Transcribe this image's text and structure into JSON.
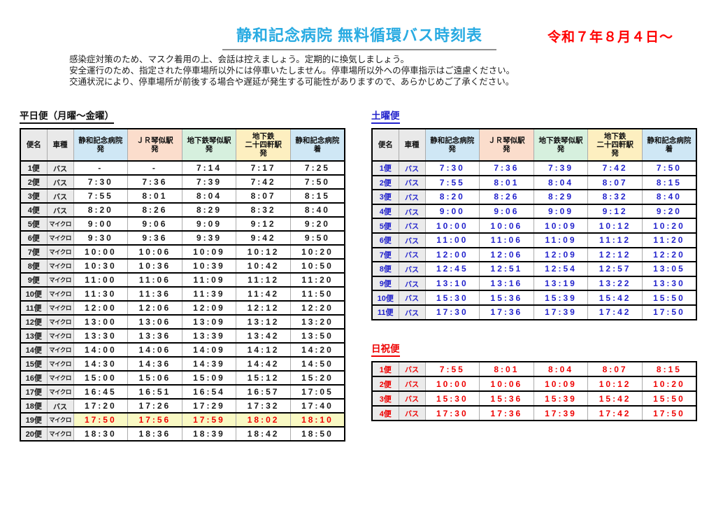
{
  "page": {
    "title": "静和記念病院 無料循環バス時刻表",
    "effective_date": "令和７年８月４日～"
  },
  "notes": [
    "感染症対策のため、マスク着用の上、会話は控えましょう。定期的に換気しましょう。",
    "安全運行のため、指定された停車場所以外には停車いたしません。停車場所以外への停車指示はご遠慮ください。",
    "交通状況により、停車場所が前後する場合や遅延が発生する可能性がありますので、あらかじめご了承ください。"
  ],
  "colors": {
    "title_blue": "#29abe2",
    "date_red": "#ff0000",
    "saturday_text": "#2222cc",
    "holiday_text": "#ee0000",
    "header_gray": "#e9e9e9",
    "header_blue": "#cfe7f5",
    "header_salmon": "#fbddcc",
    "header_green": "#d6f0de",
    "header_yellow": "#fdefc0",
    "highlight_row": "#f9f9c3"
  },
  "station_columns": [
    {
      "label": "便名",
      "bg": "gray"
    },
    {
      "label": "車種",
      "bg": "gray"
    },
    {
      "label": "静和記念病院\n発",
      "bg": "blue"
    },
    {
      "label": "ＪＲ琴似駅\n発",
      "bg": "salmon"
    },
    {
      "label": "地下鉄琴似駅\n発",
      "bg": "green"
    },
    {
      "label": "地下鉄\n二十四軒駅\n発",
      "bg": "yellow"
    },
    {
      "label": "静和記念病院\n着",
      "bg": "blue"
    }
  ],
  "tables": {
    "weekday": {
      "title": "平日便（月曜～金曜）",
      "has_header": true,
      "rows": [
        {
          "name": "1便",
          "vehicle": "バス",
          "times": [
            "-",
            "-",
            "7:14",
            "7:17",
            "7:25"
          ]
        },
        {
          "name": "2便",
          "vehicle": "バス",
          "times": [
            "7:30",
            "7:36",
            "7:39",
            "7:42",
            "7:50"
          ]
        },
        {
          "name": "3便",
          "vehicle": "バス",
          "times": [
            "7:55",
            "8:01",
            "8:04",
            "8:07",
            "8:15"
          ]
        },
        {
          "name": "4便",
          "vehicle": "バス",
          "times": [
            "8:20",
            "8:26",
            "8:29",
            "8:32",
            "8:40"
          ]
        },
        {
          "name": "5便",
          "vehicle": "マイクロ",
          "times": [
            "9:00",
            "9:06",
            "9:09",
            "9:12",
            "9:20"
          ]
        },
        {
          "name": "6便",
          "vehicle": "マイクロ",
          "times": [
            "9:30",
            "9:36",
            "9:39",
            "9:42",
            "9:50"
          ]
        },
        {
          "name": "7便",
          "vehicle": "マイクロ",
          "times": [
            "10:00",
            "10:06",
            "10:09",
            "10:12",
            "10:20"
          ]
        },
        {
          "name": "8便",
          "vehicle": "マイクロ",
          "times": [
            "10:30",
            "10:36",
            "10:39",
            "10:42",
            "10:50"
          ]
        },
        {
          "name": "9便",
          "vehicle": "マイクロ",
          "times": [
            "11:00",
            "11:06",
            "11:09",
            "11:12",
            "11:20"
          ]
        },
        {
          "name": "10便",
          "vehicle": "マイクロ",
          "times": [
            "11:30",
            "11:36",
            "11:39",
            "11:42",
            "11:50"
          ]
        },
        {
          "name": "11便",
          "vehicle": "マイクロ",
          "times": [
            "12:00",
            "12:06",
            "12:09",
            "12:12",
            "12:20"
          ]
        },
        {
          "name": "12便",
          "vehicle": "マイクロ",
          "times": [
            "13:00",
            "13:06",
            "13:09",
            "13:12",
            "13:20"
          ]
        },
        {
          "name": "13便",
          "vehicle": "マイクロ",
          "times": [
            "13:30",
            "13:36",
            "13:39",
            "13:42",
            "13:50"
          ]
        },
        {
          "name": "14便",
          "vehicle": "マイクロ",
          "times": [
            "14:00",
            "14:06",
            "14:09",
            "14:12",
            "14:20"
          ]
        },
        {
          "name": "15便",
          "vehicle": "マイクロ",
          "times": [
            "14:30",
            "14:36",
            "14:39",
            "14:42",
            "14:50"
          ]
        },
        {
          "name": "16便",
          "vehicle": "マイクロ",
          "times": [
            "15:00",
            "15:06",
            "15:09",
            "15:12",
            "15:20"
          ]
        },
        {
          "name": "17便",
          "vehicle": "マイクロ",
          "times": [
            "16:45",
            "16:51",
            "16:54",
            "16:57",
            "17:05"
          ]
        },
        {
          "name": "18便",
          "vehicle": "バス",
          "times": [
            "17:20",
            "17:26",
            "17:29",
            "17:32",
            "17:40"
          ]
        },
        {
          "name": "19便",
          "vehicle": "マイクロ",
          "times": [
            "17:50",
            "17:56",
            "17:59",
            "18:02",
            "18:10"
          ],
          "highlight": true
        },
        {
          "name": "20便",
          "vehicle": "マイクロ",
          "times": [
            "18:30",
            "18:36",
            "18:39",
            "18:42",
            "18:50"
          ]
        }
      ]
    },
    "saturday": {
      "title": "土曜便",
      "has_header": true,
      "rows": [
        {
          "name": "1便",
          "vehicle": "バス",
          "times": [
            "7:30",
            "7:36",
            "7:39",
            "7:42",
            "7:50"
          ]
        },
        {
          "name": "2便",
          "vehicle": "バス",
          "times": [
            "7:55",
            "8:01",
            "8:04",
            "8:07",
            "8:15"
          ]
        },
        {
          "name": "3便",
          "vehicle": "バス",
          "times": [
            "8:20",
            "8:26",
            "8:29",
            "8:32",
            "8:40"
          ]
        },
        {
          "name": "4便",
          "vehicle": "バス",
          "times": [
            "9:00",
            "9:06",
            "9:09",
            "9:12",
            "9:20"
          ]
        },
        {
          "name": "5便",
          "vehicle": "バス",
          "times": [
            "10:00",
            "10:06",
            "10:09",
            "10:12",
            "10:20"
          ]
        },
        {
          "name": "6便",
          "vehicle": "バス",
          "times": [
            "11:00",
            "11:06",
            "11:09",
            "11:12",
            "11:20"
          ]
        },
        {
          "name": "7便",
          "vehicle": "バス",
          "times": [
            "12:00",
            "12:06",
            "12:09",
            "12:12",
            "12:20"
          ]
        },
        {
          "name": "8便",
          "vehicle": "バス",
          "times": [
            "12:45",
            "12:51",
            "12:54",
            "12:57",
            "13:05"
          ]
        },
        {
          "name": "9便",
          "vehicle": "バス",
          "times": [
            "13:10",
            "13:16",
            "13:19",
            "13:22",
            "13:30"
          ]
        },
        {
          "name": "10便",
          "vehicle": "バス",
          "times": [
            "15:30",
            "15:36",
            "15:39",
            "15:42",
            "15:50"
          ]
        },
        {
          "name": "11便",
          "vehicle": "バス",
          "times": [
            "17:30",
            "17:36",
            "17:39",
            "17:42",
            "17:50"
          ]
        }
      ]
    },
    "holiday": {
      "title": "日祝便",
      "has_header": false,
      "rows": [
        {
          "name": "1便",
          "vehicle": "バス",
          "times": [
            "7:55",
            "8:01",
            "8:04",
            "8:07",
            "8:15"
          ]
        },
        {
          "name": "2便",
          "vehicle": "バス",
          "times": [
            "10:00",
            "10:06",
            "10:09",
            "10:12",
            "10:20"
          ]
        },
        {
          "name": "3便",
          "vehicle": "バス",
          "times": [
            "15:30",
            "15:36",
            "15:39",
            "15:42",
            "15:50"
          ]
        },
        {
          "name": "4便",
          "vehicle": "バス",
          "times": [
            "17:30",
            "17:36",
            "17:39",
            "17:42",
            "17:50"
          ]
        }
      ]
    }
  }
}
